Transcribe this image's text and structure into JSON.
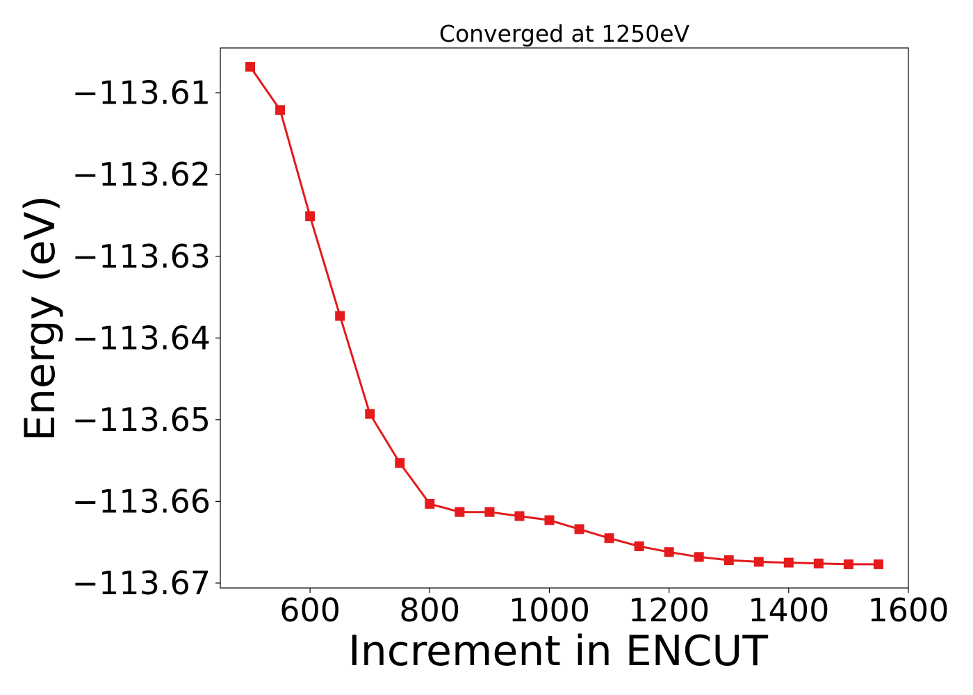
{
  "chart_data": {
    "type": "line",
    "title": "Converged at 1250eV",
    "xlabel": "Increment in ENCUT",
    "ylabel": "Energy (eV)",
    "xlim": [
      450,
      1600
    ],
    "ylim": [
      -113.6706,
      -113.6045
    ],
    "xticks": [
      600,
      800,
      1000,
      1200,
      1400,
      1600
    ],
    "xtick_labels": [
      "600",
      "800",
      "1000",
      "1200",
      "1400",
      "1600"
    ],
    "yticks": [
      -113.61,
      -113.62,
      -113.63,
      -113.64,
      -113.65,
      -113.66,
      -113.67
    ],
    "ytick_labels": [
      "−113.61",
      "−113.62",
      "−113.63",
      "−113.64",
      "−113.65",
      "−113.66",
      "−113.67"
    ],
    "grid": false,
    "legend": "none",
    "series": [
      {
        "color": "#e41a1c",
        "marker": "square",
        "x": [
          500,
          550,
          600,
          650,
          700,
          750,
          800,
          850,
          900,
          950,
          1000,
          1050,
          1100,
          1150,
          1200,
          1250,
          1300,
          1350,
          1400,
          1450,
          1500,
          1550
        ],
        "y": [
          -113.6068,
          -113.6121,
          -113.6251,
          -113.6373,
          -113.6493,
          -113.6553,
          -113.6603,
          -113.6613,
          -113.6613,
          -113.6618,
          -113.6623,
          -113.6634,
          -113.6645,
          -113.6655,
          -113.6662,
          -113.6668,
          -113.6672,
          -113.6674,
          -113.6675,
          -113.6676,
          -113.6677,
          -113.6677
        ]
      }
    ]
  }
}
